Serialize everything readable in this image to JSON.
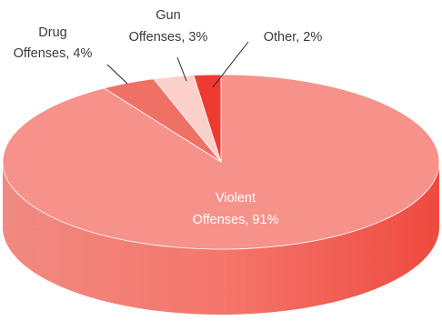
{
  "chart_data": {
    "type": "pie",
    "style": "3d",
    "slices": [
      {
        "label_lines": [
          "Violent",
          "Offenses, 91%"
        ],
        "value": 91,
        "color": "#f6928a"
      },
      {
        "label_lines": [
          "Drug",
          "Offenses, 4%"
        ],
        "value": 4,
        "color": "#ef7166"
      },
      {
        "label_lines": [
          "Gun",
          "Offenses, 3%"
        ],
        "value": 3,
        "color": "#fbd0cb"
      },
      {
        "label_lines": [
          "Other, 2%"
        ],
        "value": 2,
        "color": "#ee3b31"
      }
    ]
  }
}
